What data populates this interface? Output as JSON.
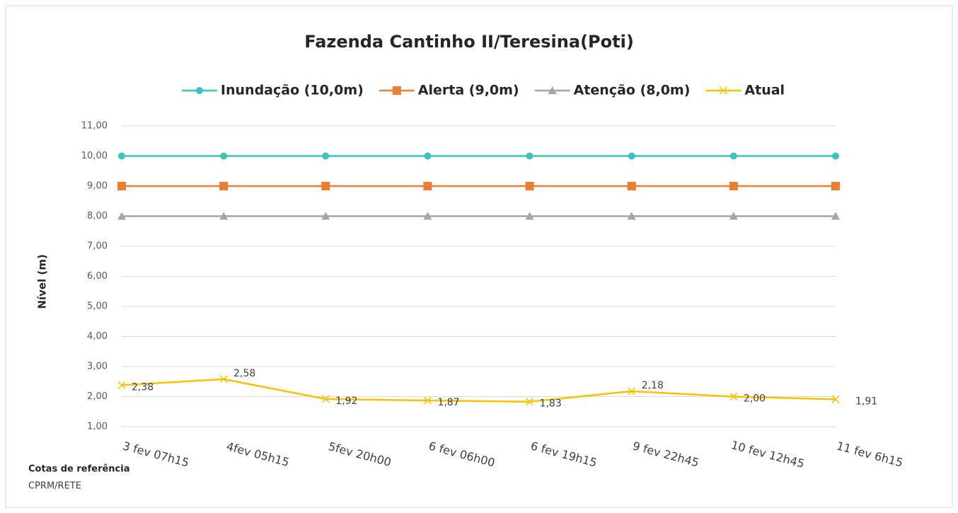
{
  "chart_data": {
    "type": "line",
    "title": "Fazenda Cantinho II/Teresina(Poti)",
    "y_label": "Nível (m)",
    "footnote": [
      "Cotas de referência",
      "CPRM/RETE"
    ],
    "categories": [
      "3 fev 07h15",
      "4fev 05h15",
      "5fev 20h00",
      "6 fev 06h00",
      "6 fev 19h15",
      "9 fev 22h45",
      "10 fev 12h45",
      "11 fev 6h15"
    ],
    "series": [
      {
        "name": "Inundação (10,0m)",
        "color": "#3ec1c1",
        "marker": "circle",
        "values": [
          10,
          10,
          10,
          10,
          10,
          10,
          10,
          10
        ]
      },
      {
        "name": "Alerta (9,0m)",
        "color": "#ed7d31",
        "marker": "square",
        "values": [
          9,
          9,
          9,
          9,
          9,
          9,
          9,
          9
        ]
      },
      {
        "name": "Atenção (8,0m)",
        "color": "#a5a5a5",
        "marker": "triangle",
        "values": [
          8,
          8,
          8,
          8,
          8,
          8,
          8,
          8
        ]
      },
      {
        "name": "Atual",
        "color": "#ffc000",
        "marker": "x",
        "values": [
          2.38,
          2.58,
          1.92,
          1.87,
          1.83,
          2.18,
          2.0,
          1.91
        ],
        "value_labels": [
          "2,38",
          "2,58",
          "1,92",
          "1,87",
          "1,83",
          "2,18",
          "2,00",
          "1,91"
        ]
      }
    ],
    "ylim": [
      1,
      11
    ],
    "yticks": [
      {
        "value": 1,
        "label": "1,00"
      },
      {
        "value": 2,
        "label": "2,00"
      },
      {
        "value": 3,
        "label": "3,00"
      },
      {
        "value": 4,
        "label": "4,00"
      },
      {
        "value": 5,
        "label": "5,00"
      },
      {
        "value": 6,
        "label": "6,00"
      },
      {
        "value": 7,
        "label": "7,00"
      },
      {
        "value": 8,
        "label": "8,00"
      },
      {
        "value": 9,
        "label": "9,00"
      },
      {
        "value": 10,
        "label": "10,00"
      },
      {
        "value": 11,
        "label": "11,00"
      }
    ],
    "grid": true,
    "legend": "top"
  }
}
